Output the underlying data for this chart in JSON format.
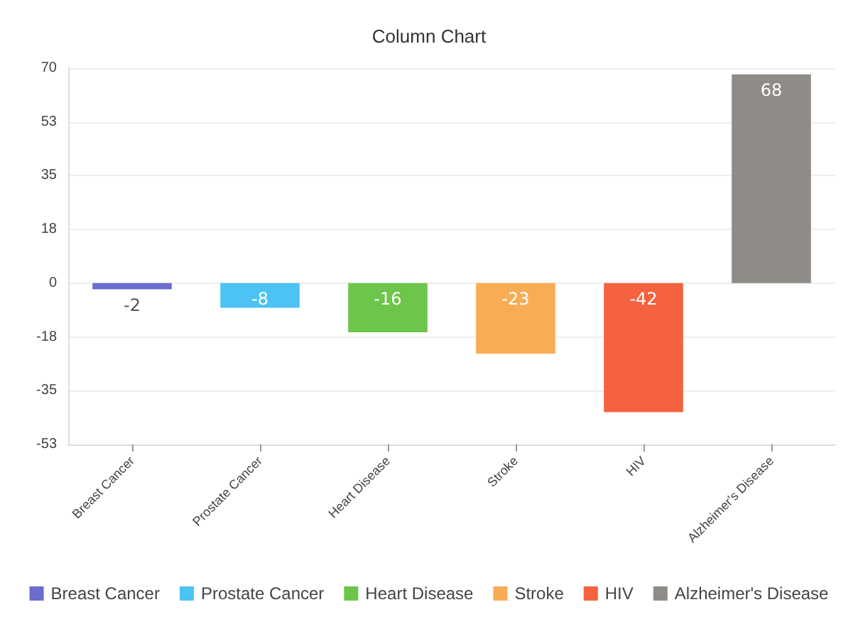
{
  "chart_data": {
    "type": "bar",
    "title": "Column Chart",
    "categories": [
      "Breast Cancer",
      "Prostate Cancer",
      "Heart Disease",
      "Stroke",
      "HIV",
      "Alzheimer's Disease"
    ],
    "series": [
      {
        "name": "Breast Cancer",
        "color": "#6a6dcc",
        "values": [
          -2,
          null,
          null,
          null,
          null,
          null
        ]
      },
      {
        "name": "Prostate Cancer",
        "color": "#4cc3f2",
        "values": [
          null,
          -8,
          null,
          null,
          null,
          null
        ]
      },
      {
        "name": "Heart Disease",
        "color": "#6ec54b",
        "values": [
          null,
          null,
          -16,
          null,
          null,
          null
        ]
      },
      {
        "name": "Stroke",
        "color": "#f8ad54",
        "values": [
          null,
          null,
          null,
          -23,
          null,
          null
        ]
      },
      {
        "name": "HIV",
        "color": "#f5623f",
        "values": [
          null,
          null,
          null,
          null,
          -42,
          null
        ]
      },
      {
        "name": "Alzheimer's Disease",
        "color": "#8f8c88",
        "values": [
          null,
          null,
          null,
          null,
          null,
          68
        ]
      }
    ],
    "ylim": [
      -52.5,
      70
    ],
    "yticks": [
      {
        "value": -52.5,
        "label": "-53"
      },
      {
        "value": -35,
        "label": "-35"
      },
      {
        "value": -17.5,
        "label": "-18"
      },
      0,
      {
        "value": 17.5,
        "label": "18"
      },
      35,
      {
        "value": 52.5,
        "label": "53"
      },
      70
    ],
    "grid": "y",
    "legend": "bottom",
    "data_labels": true
  }
}
